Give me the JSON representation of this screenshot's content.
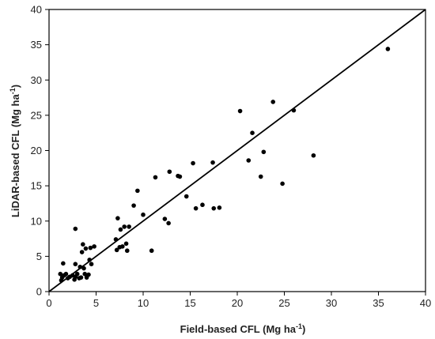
{
  "chart_data": {
    "type": "scatter",
    "title": "",
    "xlabel": "Field-based CFL (Mg ha",
    "xlabel_sup": "-1",
    "xlabel_close": ")",
    "ylabel": "LiDAR-based CFL (Mg ha",
    "ylabel_sup": "-1",
    "ylabel_close": ")",
    "xlim": [
      0,
      40
    ],
    "ylim": [
      0,
      40
    ],
    "xticks": [
      0,
      5,
      10,
      15,
      20,
      25,
      30,
      35,
      40
    ],
    "yticks": [
      0,
      5,
      10,
      15,
      20,
      25,
      30,
      35,
      40
    ],
    "grid": false,
    "legend": "none",
    "reference_line": {
      "type": "1:1",
      "from": [
        0,
        0
      ],
      "to": [
        40,
        40
      ]
    },
    "series": [
      {
        "marker_color": "#000000",
        "points": [
          [
            1.2,
            2.5
          ],
          [
            1.3,
            1.6
          ],
          [
            1.4,
            2.0
          ],
          [
            1.5,
            4.0
          ],
          [
            1.6,
            2.3
          ],
          [
            1.8,
            2.5
          ],
          [
            2.0,
            1.9
          ],
          [
            2.2,
            2.1
          ],
          [
            2.5,
            2.3
          ],
          [
            2.7,
            1.7
          ],
          [
            2.8,
            2.1
          ],
          [
            2.8,
            3.9
          ],
          [
            2.8,
            8.9
          ],
          [
            3.0,
            2.5
          ],
          [
            3.2,
            1.9
          ],
          [
            3.3,
            3.5
          ],
          [
            3.4,
            2.0
          ],
          [
            3.5,
            5.6
          ],
          [
            3.6,
            6.7
          ],
          [
            3.7,
            3.3
          ],
          [
            3.8,
            2.5
          ],
          [
            3.9,
            6.1
          ],
          [
            4.0,
            2.0
          ],
          [
            4.2,
            2.4
          ],
          [
            4.3,
            4.5
          ],
          [
            4.4,
            6.2
          ],
          [
            4.5,
            3.9
          ],
          [
            4.8,
            6.4
          ],
          [
            7.1,
            7.4
          ],
          [
            7.2,
            5.9
          ],
          [
            7.3,
            10.4
          ],
          [
            7.5,
            6.3
          ],
          [
            7.6,
            8.8
          ],
          [
            7.8,
            6.4
          ],
          [
            8.0,
            9.2
          ],
          [
            8.2,
            6.8
          ],
          [
            8.3,
            5.8
          ],
          [
            8.5,
            9.2
          ],
          [
            9.0,
            12.2
          ],
          [
            9.4,
            14.3
          ],
          [
            10.0,
            10.9
          ],
          [
            10.9,
            5.8
          ],
          [
            11.3,
            16.2
          ],
          [
            12.3,
            10.3
          ],
          [
            12.7,
            9.7
          ],
          [
            12.8,
            17.0
          ],
          [
            13.7,
            16.4
          ],
          [
            13.9,
            16.3
          ],
          [
            14.6,
            13.5
          ],
          [
            15.3,
            18.2
          ],
          [
            15.6,
            11.8
          ],
          [
            16.3,
            12.3
          ],
          [
            17.4,
            18.3
          ],
          [
            17.5,
            11.8
          ],
          [
            18.1,
            11.9
          ],
          [
            20.3,
            25.6
          ],
          [
            21.2,
            18.6
          ],
          [
            21.6,
            22.5
          ],
          [
            22.5,
            16.3
          ],
          [
            22.8,
            19.8
          ],
          [
            23.8,
            26.9
          ],
          [
            24.8,
            15.3
          ],
          [
            26.0,
            25.7
          ],
          [
            28.1,
            19.3
          ],
          [
            36.0,
            34.4
          ]
        ]
      }
    ]
  }
}
